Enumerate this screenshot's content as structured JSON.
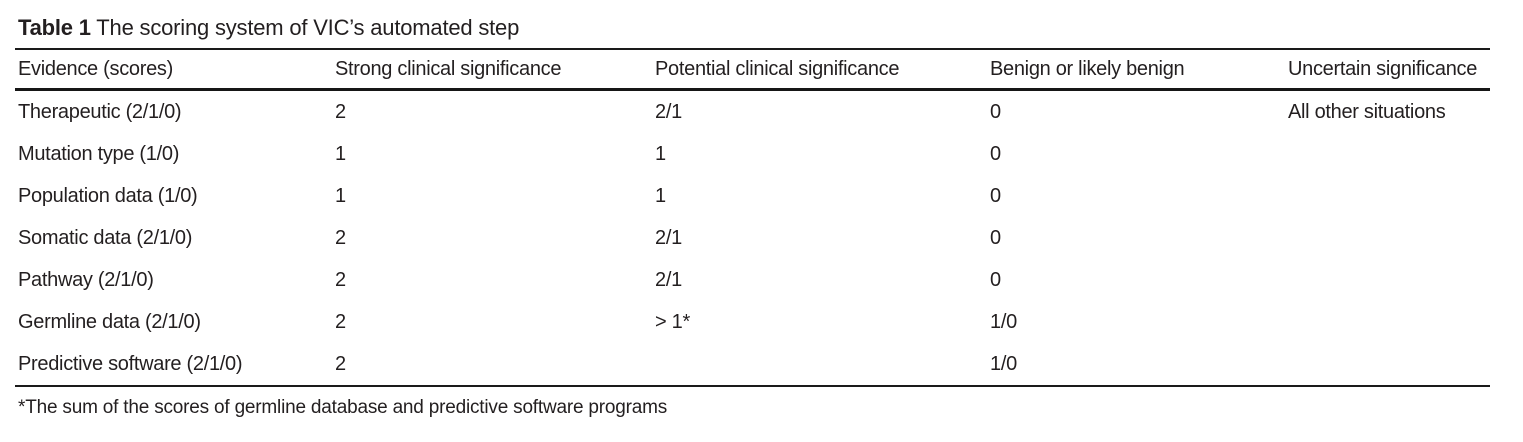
{
  "page": {
    "background": "#ffffff",
    "text_color": "#231f20",
    "rule_color": "#1a1a1a"
  },
  "title": {
    "label": "Table 1",
    "text": "The scoring system of VIC’s automated step"
  },
  "table": {
    "columns": [
      "Evidence (scores)",
      "Strong clinical significance",
      "Potential clinical significance",
      "Benign or likely benign",
      "Uncertain significance"
    ],
    "rows": [
      {
        "cells": [
          "Therapeutic (2/1/0)",
          "2",
          "2/1",
          "0",
          "All other situations"
        ]
      },
      {
        "cells": [
          "Mutation type (1/0)",
          "1",
          "1",
          "0",
          ""
        ]
      },
      {
        "cells": [
          "Population data (1/0)",
          "1",
          "1",
          "0",
          ""
        ]
      },
      {
        "cells": [
          "Somatic data (2/1/0)",
          "2",
          "2/1",
          "0",
          ""
        ]
      },
      {
        "cells": [
          "Pathway (2/1/0)",
          "2",
          "2/1",
          "0",
          ""
        ]
      },
      {
        "cells": [
          "Germline data (2/1/0)",
          "2",
          "> 1*",
          "1/0",
          ""
        ]
      },
      {
        "cells": [
          "Predictive software (2/1/0)",
          "2",
          "",
          "1/0",
          ""
        ]
      }
    ]
  },
  "footnote": "*The sum of the scores of germline database and predictive software programs"
}
